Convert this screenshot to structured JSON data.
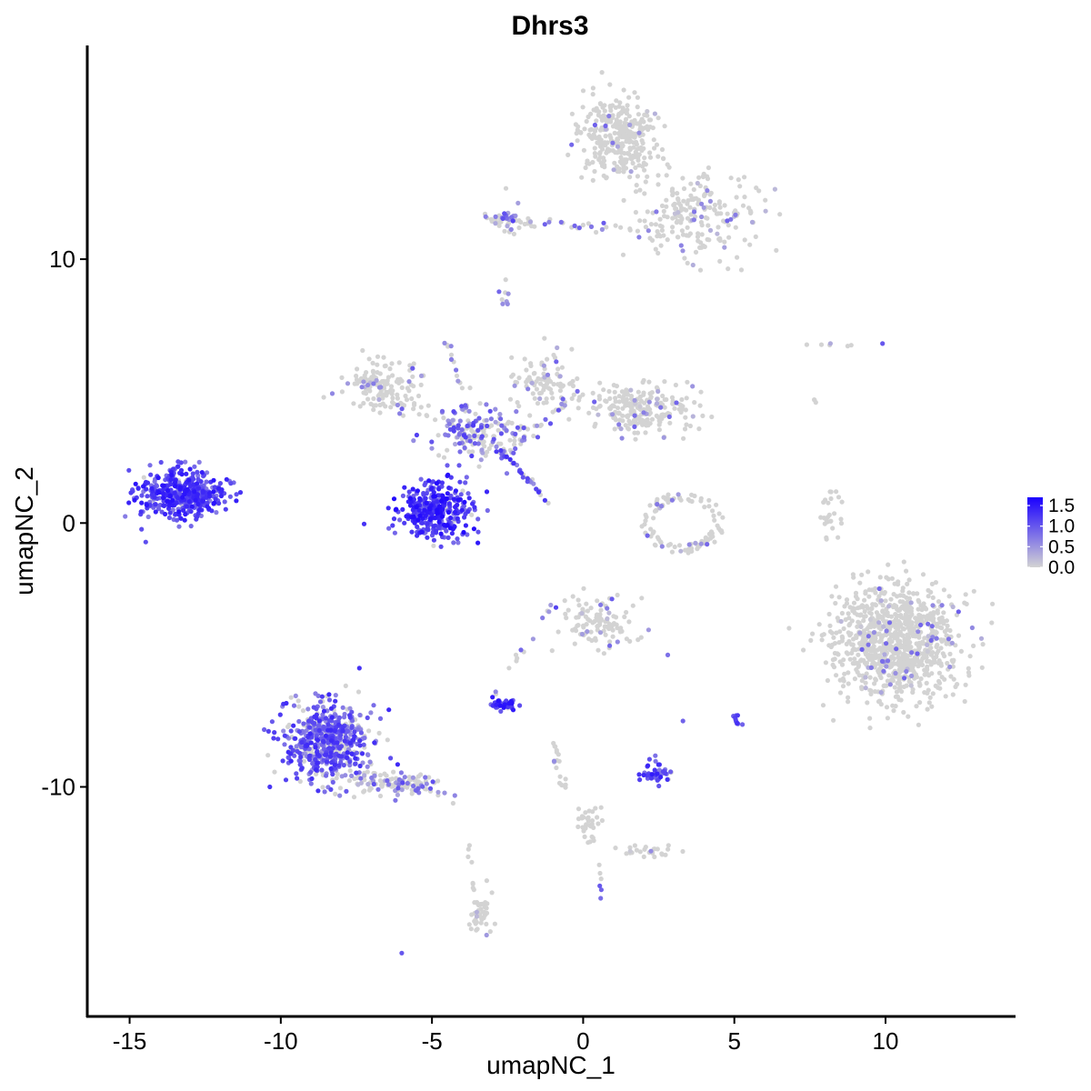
{
  "chart_data": {
    "type": "scatter",
    "title": "Dhrs3",
    "xlabel": "umapNC_1",
    "ylabel": "umapNC_2",
    "xlim": [
      -16.4,
      14.3
    ],
    "ylim": [
      -18.7,
      18.1
    ],
    "x_ticks": [
      -15,
      -10,
      -5,
      0,
      5,
      10
    ],
    "x_tick_labels": [
      "-15",
      "-10",
      "-5",
      "0",
      "5",
      "10"
    ],
    "y_ticks": [
      -10,
      0,
      10
    ],
    "y_tick_labels": [
      "-10",
      "0",
      "10"
    ],
    "grid": false,
    "legend": {
      "placement": "right",
      "type": "colorbar",
      "labels": [
        "1.5",
        "1.0",
        "0.5",
        "0.0"
      ],
      "values": [
        1.5,
        1.0,
        0.5,
        0.0
      ],
      "range": [
        0,
        1.7
      ],
      "low_color": "#d3d3d3",
      "high_color": "#1a00ff"
    },
    "point_color_scale": "expression (0 = light grey, max = blue)",
    "clusters": [
      {
        "center": [
          1.2,
          14.6
        ],
        "spread": [
          1.2,
          1.4
        ],
        "n": 320,
        "expr": 0.05,
        "shape": "ellipse"
      },
      {
        "center": [
          3.6,
          11.8
        ],
        "spread": [
          2.0,
          1.5
        ],
        "n": 220,
        "expr": 0.12,
        "shape": "ellipse"
      },
      {
        "center": [
          -2.5,
          11.4
        ],
        "spread": [
          0.4,
          0.6
        ],
        "n": 25,
        "expr": 0.4,
        "shape": "ellipse"
      },
      {
        "center": [
          -2.6,
          8.6
        ],
        "spread": [
          0.2,
          0.4
        ],
        "n": 8,
        "expr": 0.6,
        "shape": "ellipse"
      },
      {
        "center": [
          -6.6,
          5.2
        ],
        "spread": [
          1.1,
          0.9
        ],
        "n": 110,
        "expr": 0.1,
        "shape": "ellipse"
      },
      {
        "center": [
          1.8,
          4.3
        ],
        "spread": [
          1.6,
          0.9
        ],
        "n": 230,
        "expr": 0.08,
        "shape": "ellipse"
      },
      {
        "center": [
          -1.3,
          5.4
        ],
        "spread": [
          1.0,
          1.0
        ],
        "n": 90,
        "expr": 0.2,
        "shape": "ellipse"
      },
      {
        "center": [
          -3.5,
          3.4
        ],
        "spread": [
          1.3,
          1.0
        ],
        "n": 140,
        "expr": 0.5,
        "shape": "ellipse"
      },
      {
        "center": [
          -13.3,
          1.1
        ],
        "spread": [
          1.3,
          0.8
        ],
        "n": 430,
        "expr": 0.95,
        "shape": "ellipse"
      },
      {
        "center": [
          -4.9,
          0.5
        ],
        "spread": [
          1.1,
          1.0
        ],
        "n": 340,
        "expr": 1.05,
        "shape": "ellipse"
      },
      {
        "center": [
          3.3,
          0.0
        ],
        "spread": [
          1.3,
          1.1
        ],
        "n": 100,
        "expr": 0.08,
        "shape": "ring"
      },
      {
        "center": [
          8.2,
          0.3
        ],
        "spread": [
          0.3,
          0.9
        ],
        "n": 25,
        "expr": 0.0,
        "shape": "ellipse"
      },
      {
        "center": [
          10.4,
          -4.5
        ],
        "spread": [
          1.9,
          1.9
        ],
        "n": 950,
        "expr": 0.05,
        "shape": "ellipse"
      },
      {
        "center": [
          0.5,
          -3.8
        ],
        "spread": [
          1.1,
          0.9
        ],
        "n": 110,
        "expr": 0.12,
        "shape": "ellipse"
      },
      {
        "center": [
          -2.6,
          -6.9
        ],
        "spread": [
          0.4,
          0.2
        ],
        "n": 45,
        "expr": 1.0,
        "shape": "ellipse"
      },
      {
        "center": [
          -8.5,
          -8.3
        ],
        "spread": [
          1.3,
          1.3
        ],
        "n": 560,
        "expr": 0.7,
        "shape": "ellipse"
      },
      {
        "center": [
          -6.3,
          -9.9
        ],
        "spread": [
          1.3,
          0.4
        ],
        "n": 90,
        "expr": 0.25,
        "shape": "ellipse"
      },
      {
        "center": [
          2.5,
          -9.5
        ],
        "spread": [
          0.5,
          0.4
        ],
        "n": 45,
        "expr": 0.85,
        "shape": "ellipse"
      },
      {
        "center": [
          5.1,
          -7.4
        ],
        "spread": [
          0.12,
          0.3
        ],
        "n": 10,
        "expr": 0.85,
        "shape": "ellipse"
      },
      {
        "center": [
          0.2,
          -11.5
        ],
        "spread": [
          0.4,
          0.6
        ],
        "n": 35,
        "expr": 0.05,
        "shape": "ellipse"
      },
      {
        "center": [
          2.0,
          -12.4
        ],
        "spread": [
          0.8,
          0.2
        ],
        "n": 25,
        "expr": 0.1,
        "shape": "ellipse"
      },
      {
        "center": [
          -3.4,
          -14.8
        ],
        "spread": [
          0.3,
          0.6
        ],
        "n": 45,
        "expr": 0.1,
        "shape": "ellipse"
      }
    ],
    "streams": [
      {
        "from": [
          -3.2,
          11.6
        ],
        "to": [
          0.9,
          11.1
        ],
        "n": 45,
        "spread": 0.2,
        "expr": 0.3
      },
      {
        "from": [
          -7.7,
          5.5
        ],
        "to": [
          -3.6,
          3.3
        ],
        "n": 55,
        "spread": 0.3,
        "expr": 0.25
      },
      {
        "from": [
          -4.5,
          7.2
        ],
        "to": [
          -3.6,
          2.6
        ],
        "n": 22,
        "spread": 0.15,
        "expr": 0.3
      },
      {
        "from": [
          -3.0,
          3.1
        ],
        "to": [
          -1.1,
          0.7
        ],
        "n": 32,
        "spread": 0.1,
        "expr": 0.7
      },
      {
        "from": [
          -2.6,
          2.6
        ],
        "to": [
          0.0,
          5.1
        ],
        "n": 40,
        "spread": 0.3,
        "expr": 0.3
      },
      {
        "from": [
          -2.9,
          -6.4
        ],
        "to": [
          -1.0,
          -3.0
        ],
        "n": 14,
        "spread": 0.12,
        "expr": 0.5
      },
      {
        "from": [
          -7.4,
          -9.4
        ],
        "to": [
          -4.2,
          -10.4
        ],
        "n": 40,
        "spread": 0.25,
        "expr": 0.3
      },
      {
        "from": [
          -0.9,
          -8.3
        ],
        "to": [
          -0.6,
          -10.5
        ],
        "n": 18,
        "spread": 0.2,
        "expr": 0.05
      },
      {
        "from": [
          -3.8,
          -11.8
        ],
        "to": [
          -3.6,
          -14.2
        ],
        "n": 8,
        "spread": 0.1,
        "expr": 0.0
      },
      {
        "from": [
          0.5,
          -12.5
        ],
        "to": [
          0.6,
          -14.3
        ],
        "n": 5,
        "spread": 0.05,
        "expr": 0.2
      },
      {
        "from": [
          7.0,
          6.9
        ],
        "to": [
          9.9,
          6.7
        ],
        "n": 6,
        "spread": 0.2,
        "expr": 0.3
      },
      {
        "from": [
          7.5,
          4.9
        ],
        "to": [
          7.7,
          4.5
        ],
        "n": 3,
        "spread": 0.05,
        "expr": 0.0
      }
    ],
    "isolated_points": [
      {
        "x": -6.0,
        "y": -16.3,
        "value": 1.0
      },
      {
        "x": 9.9,
        "y": 6.8,
        "value": 1.0
      },
      {
        "x": 2.8,
        "y": -5.0,
        "value": 0.8
      },
      {
        "x": 3.3,
        "y": -7.5,
        "value": 0.9
      },
      {
        "x": 0.6,
        "y": -13.9,
        "value": 0.9
      },
      {
        "x": -7.4,
        "y": -5.5,
        "value": 1.3
      }
    ]
  }
}
